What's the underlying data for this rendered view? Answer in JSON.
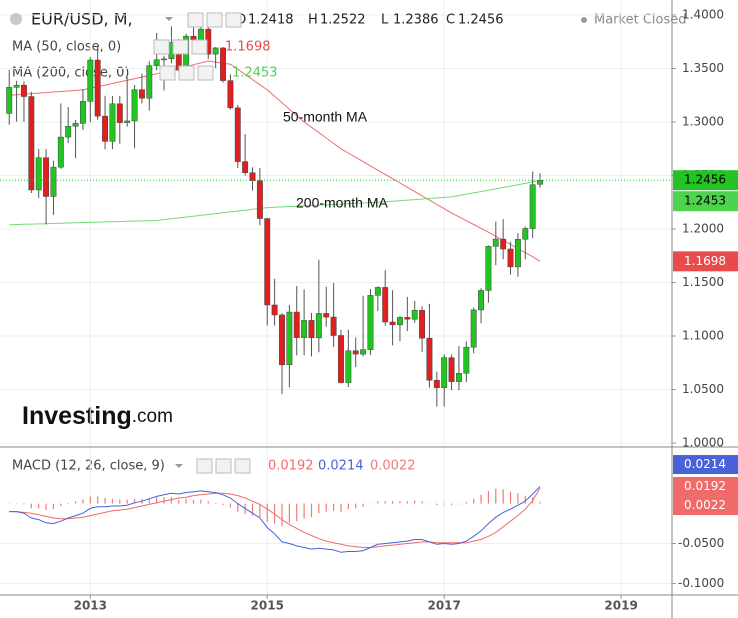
{
  "chart_data": [
    {
      "type": "candlestick",
      "title": "EUR/USD, M,",
      "status": "Market Closed",
      "ohlc_labels": [
        "O",
        "H",
        "L",
        "C"
      ],
      "up_color": "#22c322",
      "down_color": "#e01f1f",
      "open": [
        1.308,
        1.3324,
        1.3344,
        1.3238,
        1.2365,
        1.2666,
        1.2304,
        1.2578,
        1.2859,
        1.296,
        1.2987,
        1.3193,
        1.3579,
        1.3055,
        1.2819,
        1.317,
        1.2994,
        1.301,
        1.3302,
        1.3222,
        1.3526,
        1.3582,
        1.359,
        1.3743,
        1.3485,
        1.3802,
        1.3769,
        1.3868,
        1.3634,
        1.3692,
        1.3387,
        1.3132,
        1.263,
        1.2526,
        1.2452,
        1.2098,
        1.129,
        1.1197,
        1.0731,
        1.1224,
        1.0985,
        1.1146,
        1.0983,
        1.1211,
        1.1177,
        1.1005,
        1.0565,
        1.0862,
        1.0831,
        1.0873,
        1.138,
        1.1454,
        1.1131,
        1.1105,
        1.1174,
        1.1157,
        1.124,
        1.098,
        1.0587,
        1.0517,
        1.0798,
        1.0574,
        1.0652,
        1.0896,
        1.1244,
        1.1426,
        1.1838,
        1.1906,
        1.1813,
        1.1646,
        1.1904,
        1.2005,
        1.2418
      ],
      "high": [
        1.3487,
        1.3385,
        1.338,
        1.3283,
        1.2747,
        1.2747,
        1.2639,
        1.3173,
        1.314,
        1.3018,
        1.3308,
        1.3606,
        1.3711,
        1.3245,
        1.3243,
        1.3243,
        1.3417,
        1.3346,
        1.3452,
        1.3568,
        1.3832,
        1.362,
        1.3894,
        1.3775,
        1.3824,
        1.3967,
        1.3905,
        1.3994,
        1.37,
        1.37,
        1.3444,
        1.3159,
        1.2887,
        1.2577,
        1.257,
        1.21,
        1.1534,
        1.1215,
        1.129,
        1.1467,
        1.1436,
        1.1216,
        1.1713,
        1.146,
        1.1495,
        1.1058,
        1.106,
        1.0986,
        1.1376,
        1.1438,
        1.1464,
        1.1616,
        1.1428,
        1.1186,
        1.1366,
        1.1328,
        1.1278,
        1.13,
        1.0667,
        1.0828,
        1.0829,
        1.0906,
        1.0951,
        1.1267,
        1.1446,
        1.1846,
        1.207,
        1.2092,
        1.188,
        1.1961,
        1.2023,
        1.2537,
        1.2522
      ],
      "low": [
        1.2975,
        1.3004,
        1.3002,
        1.2336,
        1.2288,
        1.2042,
        1.2132,
        1.2563,
        1.2804,
        1.2662,
        1.2924,
        1.3,
        1.302,
        1.2745,
        1.2746,
        1.2796,
        1.2955,
        1.2755,
        1.3174,
        1.3106,
        1.3483,
        1.3295,
        1.3549,
        1.3479,
        1.3476,
        1.3706,
        1.3673,
        1.3589,
        1.3503,
        1.3367,
        1.3115,
        1.2571,
        1.25,
        1.2358,
        1.2035,
        1.1098,
        1.1098,
        1.0458,
        1.052,
        1.0819,
        1.0819,
        1.0809,
        1.0848,
        1.1087,
        1.0897,
        1.0557,
        1.0524,
        1.0711,
        1.081,
        1.0822,
        1.1234,
        1.1098,
        1.0912,
        1.0952,
        1.1046,
        1.1123,
        1.0851,
        1.0518,
        1.034,
        1.034,
        1.0494,
        1.0493,
        1.0569,
        1.0839,
        1.1119,
        1.1312,
        1.1662,
        1.1717,
        1.1574,
        1.1554,
        1.1717,
        1.1916,
        1.2386
      ],
      "close": [
        1.3324,
        1.3344,
        1.3238,
        1.2365,
        1.2666,
        1.2304,
        1.2578,
        1.2859,
        1.296,
        1.2987,
        1.3193,
        1.3579,
        1.3055,
        1.2819,
        1.317,
        1.2994,
        1.301,
        1.3302,
        1.3222,
        1.3526,
        1.3582,
        1.359,
        1.3743,
        1.3485,
        1.3802,
        1.3769,
        1.3868,
        1.3634,
        1.3692,
        1.3387,
        1.3132,
        1.263,
        1.2526,
        1.2452,
        1.2098,
        1.129,
        1.1197,
        1.0731,
        1.1224,
        1.0985,
        1.1146,
        1.0983,
        1.1211,
        1.1177,
        1.1005,
        1.0565,
        1.0862,
        1.0831,
        1.0873,
        1.138,
        1.1454,
        1.1131,
        1.1105,
        1.1174,
        1.1157,
        1.124,
        1.098,
        1.0587,
        1.0517,
        1.0798,
        1.0574,
        1.0652,
        1.0896,
        1.1244,
        1.1426,
        1.1838,
        1.1906,
        1.1813,
        1.1646,
        1.1904,
        1.2005,
        1.2414,
        1.2456
      ],
      "series": [
        {
          "name": "MA (50, close, 0)",
          "color": "#e84b4b",
          "values": [
            1.325,
            1.3255,
            1.326,
            1.3265,
            1.327,
            1.3275,
            1.328,
            1.3285,
            1.329,
            1.3295,
            1.33,
            1.3315,
            1.333,
            1.3345,
            1.336,
            1.3375,
            1.339,
            1.3405,
            1.342,
            1.3435,
            1.345,
            1.3467,
            1.3484,
            1.3501,
            1.3518,
            1.3535,
            1.3552,
            1.357,
            1.356,
            1.355,
            1.354,
            1.3492,
            1.3444,
            1.3396,
            1.3348,
            1.33,
            1.324,
            1.318,
            1.312,
            1.306,
            1.3,
            1.295,
            1.29,
            1.285,
            1.28,
            1.275,
            1.271,
            1.267,
            1.263,
            1.259,
            1.255,
            1.251,
            1.247,
            1.243,
            1.239,
            1.235,
            1.231,
            1.227,
            1.223,
            1.219,
            1.215,
            1.2114,
            1.2078,
            1.2042,
            1.2006,
            1.197,
            1.1932,
            1.1894,
            1.1856,
            1.1818,
            1.178,
            1.174,
            1.1698
          ]
        },
        {
          "name": "MA (200, close, 0)",
          "color": "#4fd34f",
          "values": [
            1.204,
            1.2042,
            1.2044,
            1.2046,
            1.2048,
            1.205,
            1.2052,
            1.2054,
            1.2056,
            1.2058,
            1.206,
            1.2062,
            1.2064,
            1.2066,
            1.2068,
            1.207,
            1.2072,
            1.2074,
            1.2076,
            1.2078,
            1.208,
            1.2088,
            1.2096,
            1.2104,
            1.2112,
            1.212,
            1.2128,
            1.2136,
            1.2144,
            1.2152,
            1.216,
            1.2168,
            1.2176,
            1.2184,
            1.2192,
            1.22,
            1.2203,
            1.2207,
            1.221,
            1.2213,
            1.2217,
            1.222,
            1.2223,
            1.2227,
            1.223,
            1.2233,
            1.2237,
            1.224,
            1.2243,
            1.2247,
            1.225,
            1.2255,
            1.226,
            1.2265,
            1.227,
            1.2275,
            1.228,
            1.2285,
            1.229,
            1.2295,
            1.23,
            1.2313,
            1.2325,
            1.2338,
            1.235,
            1.2363,
            1.2375,
            1.2388,
            1.24,
            1.2413,
            1.2426,
            1.244,
            1.2453
          ]
        }
      ],
      "annotations": [
        "50-month MA",
        "200-month MA"
      ],
      "xlim": [
        -1.25,
        89.9
      ],
      "xticks": [
        {
          "value": 11,
          "label": "2013"
        },
        {
          "value": 35,
          "label": "2015"
        },
        {
          "value": 59,
          "label": "2017"
        },
        {
          "value": 83,
          "label": "2019"
        }
      ],
      "ylim": [
        0.9963,
        1.414
      ],
      "yticks": [
        {
          "value": 1.4,
          "label": "1.4000"
        },
        {
          "value": 1.35,
          "label": "1.3500"
        },
        {
          "value": 1.3,
          "label": "1.3000"
        },
        {
          "value": 1.25,
          "label": "1.2500"
        },
        {
          "value": 1.2,
          "label": "1.2000"
        },
        {
          "value": 1.15,
          "label": "1.1500"
        },
        {
          "value": 1.1,
          "label": "1.1000"
        },
        {
          "value": 1.05,
          "label": "1.0500"
        },
        {
          "value": 1,
          "label": "1.0000"
        }
      ],
      "grid": true
    },
    {
      "type": "macd",
      "title": "MACD (12, 26, close, 9)",
      "signal": {
        "color": "#f06a6a",
        "values": [
          -0.01,
          -0.01,
          -0.011,
          -0.012,
          -0.014,
          -0.016,
          -0.018,
          -0.019,
          -0.019,
          -0.018,
          -0.017,
          -0.015,
          -0.013,
          -0.011,
          -0.009,
          -0.008,
          -0.007,
          -0.005,
          -0.003,
          -0.001,
          0.001,
          0.003,
          0.005,
          0.007,
          0.008,
          0.01,
          0.011,
          0.012,
          0.013,
          0.013,
          0.012,
          0.01,
          0.007,
          0.003,
          -0.001,
          -0.007,
          -0.013,
          -0.02,
          -0.026,
          -0.031,
          -0.036,
          -0.04,
          -0.044,
          -0.047,
          -0.049,
          -0.051,
          -0.053,
          -0.054,
          -0.055,
          -0.055,
          -0.054,
          -0.053,
          -0.052,
          -0.051,
          -0.05,
          -0.049,
          -0.048,
          -0.048,
          -0.049,
          -0.049,
          -0.049,
          -0.049,
          -0.049,
          -0.047,
          -0.045,
          -0.041,
          -0.036,
          -0.029,
          -0.022,
          -0.015,
          -0.007,
          0.004,
          0.0192
        ]
      },
      "macd": {
        "color": "#4a62d8",
        "values": [
          -0.01,
          -0.01,
          -0.012,
          -0.018,
          -0.02,
          -0.024,
          -0.025,
          -0.022,
          -0.018,
          -0.015,
          -0.012,
          -0.006,
          -0.004,
          -0.004,
          -0.003,
          -0.003,
          -0.002,
          0.001,
          0.003,
          0.006,
          0.009,
          0.011,
          0.013,
          0.012,
          0.014,
          0.015,
          0.016,
          0.015,
          0.014,
          0.011,
          0.007,
          0.0,
          -0.006,
          -0.012,
          -0.018,
          -0.03,
          -0.038,
          -0.048,
          -0.05,
          -0.053,
          -0.055,
          -0.057,
          -0.056,
          -0.057,
          -0.058,
          -0.061,
          -0.06,
          -0.06,
          -0.059,
          -0.055,
          -0.051,
          -0.05,
          -0.049,
          -0.048,
          -0.047,
          -0.045,
          -0.045,
          -0.048,
          -0.051,
          -0.05,
          -0.051,
          -0.05,
          -0.047,
          -0.041,
          -0.034,
          -0.025,
          -0.017,
          -0.011,
          -0.007,
          -0.002,
          0.003,
          0.012,
          0.0214
        ]
      },
      "histogram": {
        "color": "#f07a7a",
        "values": [
          0.0,
          0.0,
          -0.001,
          -0.006,
          -0.006,
          -0.008,
          -0.007,
          -0.003,
          0.001,
          0.003,
          0.005,
          0.009,
          0.009,
          0.007,
          0.006,
          0.005,
          0.005,
          0.006,
          0.006,
          0.007,
          0.008,
          0.008,
          0.008,
          0.005,
          0.006,
          0.005,
          0.005,
          0.003,
          0.001,
          -0.002,
          -0.005,
          -0.01,
          -0.013,
          -0.015,
          -0.017,
          -0.023,
          -0.025,
          -0.028,
          -0.024,
          -0.022,
          -0.019,
          -0.017,
          -0.012,
          -0.01,
          -0.009,
          -0.01,
          -0.007,
          -0.006,
          -0.004,
          0.0,
          0.003,
          0.003,
          0.003,
          0.003,
          0.003,
          0.004,
          0.003,
          0.0,
          -0.002,
          -0.001,
          -0.002,
          -0.001,
          0.002,
          0.006,
          0.011,
          0.016,
          0.019,
          0.018,
          0.015,
          0.013,
          0.01,
          0.008,
          0.0022
        ]
      },
      "ylim": [
        -0.1145,
        0.0697
      ],
      "yticks": [
        {
          "value": -0.05,
          "label": "-0.0500"
        },
        {
          "value": -0.1,
          "label": "-0.1000"
        }
      ],
      "grid": true
    }
  ],
  "logo": [
    "Investing",
    ".com"
  ]
}
